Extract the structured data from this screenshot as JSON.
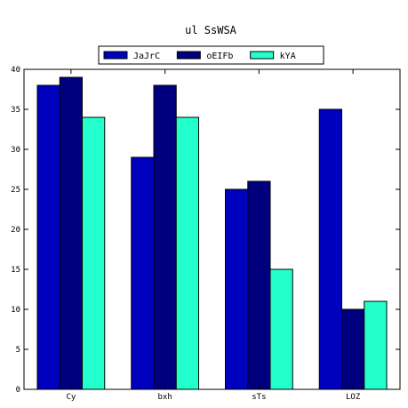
{
  "chart_data": {
    "type": "bar",
    "title": "ul  SsWSA",
    "xlabel": "",
    "ylabel": "",
    "categories": [
      "Cy",
      "bxh",
      "sTs",
      "LOZ"
    ],
    "series": [
      {
        "name": "JaJrC",
        "color": "#0000bf",
        "values": [
          38,
          29,
          25,
          35
        ]
      },
      {
        "name": "oEIFb",
        "color": "#00007f",
        "values": [
          39,
          38,
          26,
          10
        ]
      },
      {
        "name": "kYA",
        "color": "#22ffcc",
        "values": [
          34,
          34,
          15,
          11
        ]
      }
    ],
    "ylim": [
      0,
      40
    ],
    "yticks": [
      0,
      5,
      10,
      15,
      20,
      25,
      30,
      35,
      40
    ],
    "grid": false,
    "legend": "top-center"
  }
}
